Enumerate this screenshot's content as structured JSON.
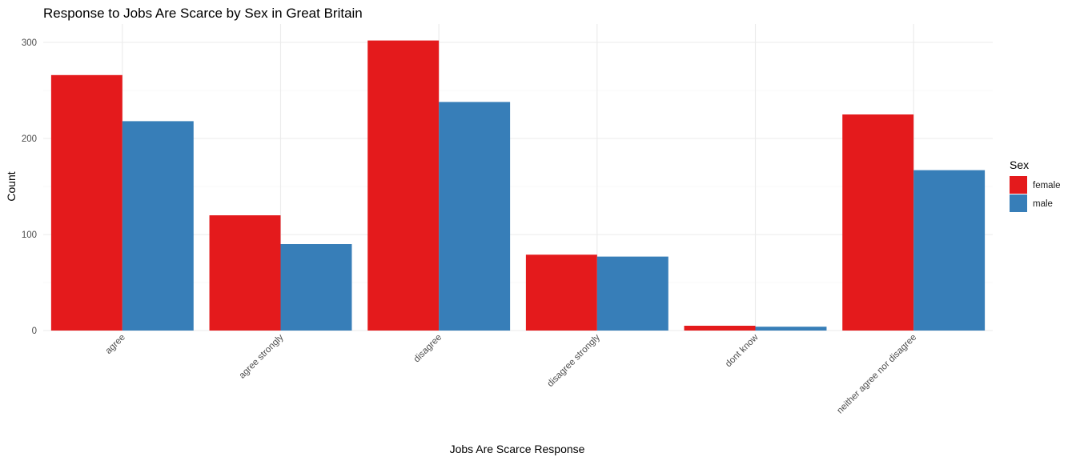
{
  "chart_data": {
    "type": "bar",
    "title": "Response to Jobs Are Scarce by Sex in Great Britain",
    "xlabel": "Jobs Are Scarce Response",
    "ylabel": "Count",
    "categories": [
      "agree",
      "agree strongly",
      "disagree",
      "disagree strongly",
      "dont know",
      "neither agree nor disagree"
    ],
    "series": [
      {
        "name": "female",
        "color": "#e41a1c",
        "values": [
          266,
          120,
          302,
          79,
          5,
          225
        ]
      },
      {
        "name": "male",
        "color": "#377eb8",
        "values": [
          218,
          90,
          238,
          77,
          4,
          167
        ]
      }
    ],
    "yticks": [
      0,
      100,
      200,
      300
    ],
    "ylim": [
      0,
      315
    ],
    "grid": true,
    "legend": {
      "title": "Sex",
      "position": "right"
    }
  }
}
